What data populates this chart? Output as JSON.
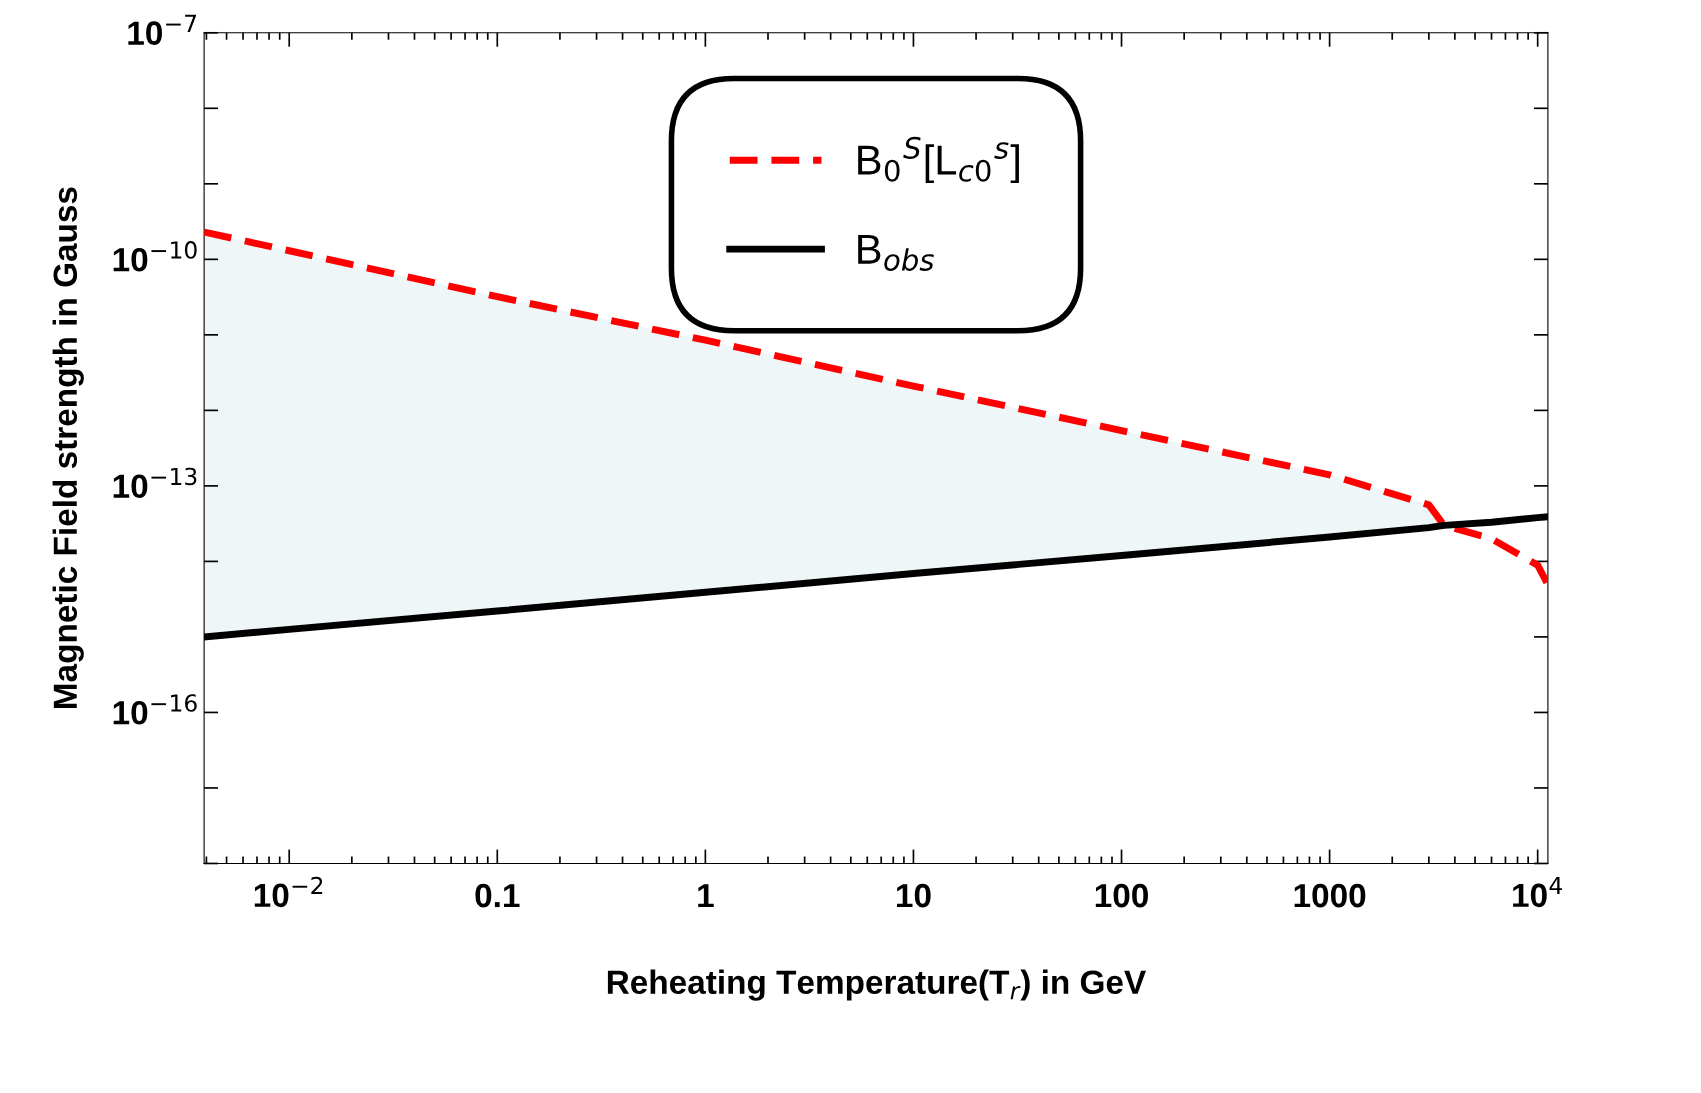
{
  "chart_data": {
    "type": "line",
    "xlabel": "Reheating Temperature(T$_{r}$) in GeV",
    "ylabel": "Magnetic Field strength in Gauss",
    "log": "xy",
    "grid": false,
    "legend": "top",
    "xlim": [
      0.0039,
      11200
    ],
    "ylim": [
      1e-18,
      1e-07
    ],
    "xticks": [
      {
        "value": 0.01,
        "label": "10$^{−2}$"
      },
      {
        "value": 0.1,
        "label": "0.1"
      },
      {
        "value": 1,
        "label": "1"
      },
      {
        "value": 10,
        "label": "10"
      },
      {
        "value": 100,
        "label": "100"
      },
      {
        "value": 1000,
        "label": "1000"
      },
      {
        "value": 10000,
        "label": "10$^{4}$"
      }
    ],
    "yticks": [
      {
        "value": 1e-18,
        "label": null
      },
      {
        "value": 1e-17,
        "label": null
      },
      {
        "value": 1e-16,
        "label": "10$^{−16}$"
      },
      {
        "value": 1e-15,
        "label": null
      },
      {
        "value": 1e-14,
        "label": null
      },
      {
        "value": 1e-13,
        "label": "10$^{−13}$"
      },
      {
        "value": 1e-12,
        "label": null
      },
      {
        "value": 1e-11,
        "label": null
      },
      {
        "value": 1e-10,
        "label": "10$^{−10}$"
      },
      {
        "value": 1e-09,
        "label": null
      },
      {
        "value": 1e-08,
        "label": null
      },
      {
        "value": 1e-07,
        "label": "10$^{−7}$"
      }
    ],
    "x": [
      0.0039,
      0.01,
      0.1,
      1,
      10,
      100,
      1000,
      3000,
      3550,
      6000,
      10000,
      11200
    ],
    "series": [
      {
        "name": "B$_{0}$$^{S}$[L$_{c0}$$^{s}$]",
        "color": "#ff0000",
        "line_style": "dashed",
        "values": [
          2.3e-10,
          1.3e-10,
          3.2e-11,
          8.5e-12,
          2.1e-12,
          5.4e-13,
          1.4e-13,
          5.6e-14,
          3e-14,
          2e-14,
          8.9e-15,
          4.9e-15
        ],
        "lower": [
          1e-15,
          1.26e-15,
          2.2e-15,
          3.9e-15,
          6.9e-15,
          1.2e-14,
          2.1e-14,
          2.8e-14,
          3e-14,
          null,
          null,
          null
        ],
        "upper": [
          2.3e-10,
          1.3e-10,
          3.2e-11,
          8.5e-12,
          2.1e-12,
          5.4e-13,
          1.4e-13,
          5.6e-14,
          3e-14,
          null,
          null,
          null
        ]
      },
      {
        "name": "B$_{obs}$",
        "color": "#000000",
        "line_style": "solid",
        "values": [
          1e-15,
          1.26e-15,
          2.2e-15,
          3.9e-15,
          6.9e-15,
          1.2e-14,
          2.1e-14,
          2.8e-14,
          3e-14,
          3.3e-14,
          3.8e-14,
          3.9e-14
        ]
      }
    ]
  }
}
